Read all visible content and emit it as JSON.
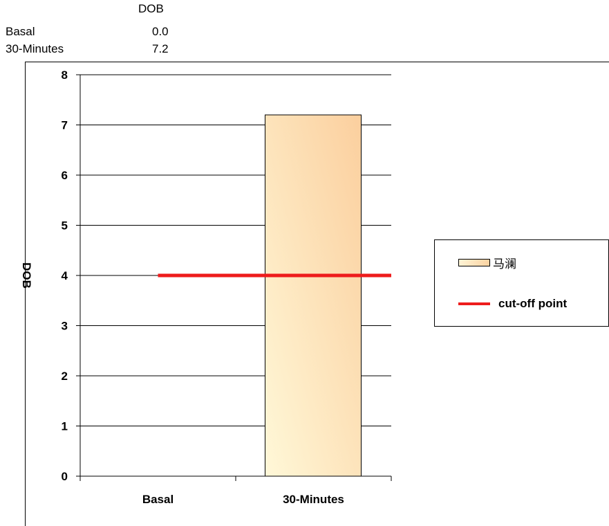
{
  "data_table": {
    "header": "DOB",
    "rows": [
      {
        "label": "Basal",
        "value": "0.0"
      },
      {
        "label": "30-Minutes",
        "value": "7.2"
      }
    ]
  },
  "chart_data": {
    "type": "bar",
    "categories": [
      "Basal",
      "30-Minutes"
    ],
    "series": [
      {
        "name": "马澜",
        "values": [
          0.0,
          7.2
        ],
        "color_light": "#fff8d8",
        "color_dark": "#fbcf9e"
      }
    ],
    "reference_line": {
      "name": "cut-off point",
      "value": 4,
      "color": "#ee1c1c"
    },
    "ylabel": "DOB",
    "ylim": [
      0,
      8
    ],
    "yticks": [
      "0",
      "1",
      "2",
      "3",
      "4",
      "5",
      "6",
      "7",
      "8"
    ],
    "grid": true,
    "legend_position": "right"
  },
  "legend": {
    "items": [
      {
        "label": "马澜",
        "kind": "bar"
      },
      {
        "label": "cut-off point",
        "kind": "line"
      }
    ]
  }
}
